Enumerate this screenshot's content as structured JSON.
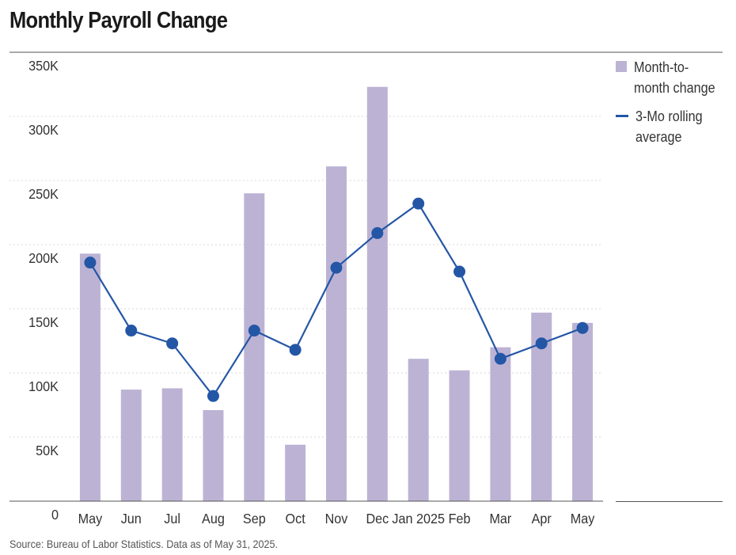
{
  "header": {
    "title": "Monthly Payroll Change"
  },
  "footer": {
    "source": "Source: Bureau of Labor Statistics. Data as of May 31, 2025."
  },
  "legend": {
    "bar_label": "Month-to-month change",
    "line_label": "3-Mo rolling average"
  },
  "colors": {
    "bar": "#bcb3d4",
    "line": "#2456a6",
    "grid": "#d9d9d9",
    "axis": "#555555"
  },
  "chart_data": {
    "type": "bar",
    "categories": [
      "May",
      "Jun",
      "Jul",
      "Aug",
      "Sep",
      "Oct",
      "Nov",
      "Dec",
      "Jan 2025",
      "Feb",
      "Mar",
      "Apr",
      "May"
    ],
    "series": [
      {
        "name": "Month-to-month change",
        "type": "bar",
        "values": [
          193000,
          87000,
          88000,
          71000,
          240000,
          44000,
          261000,
          323000,
          111000,
          102000,
          120000,
          147000,
          139000
        ]
      },
      {
        "name": "3-Mo rolling average",
        "type": "line",
        "values": [
          186000,
          133000,
          123000,
          82000,
          133000,
          118000,
          182000,
          209000,
          232000,
          179000,
          111000,
          123000,
          135000
        ]
      }
    ],
    "y_ticks": [
      "0",
      "50K",
      "100K",
      "150K",
      "200K",
      "250K",
      "300K",
      "350K"
    ],
    "ylim": [
      0,
      350000
    ],
    "grid": true,
    "legend_position": "right"
  }
}
